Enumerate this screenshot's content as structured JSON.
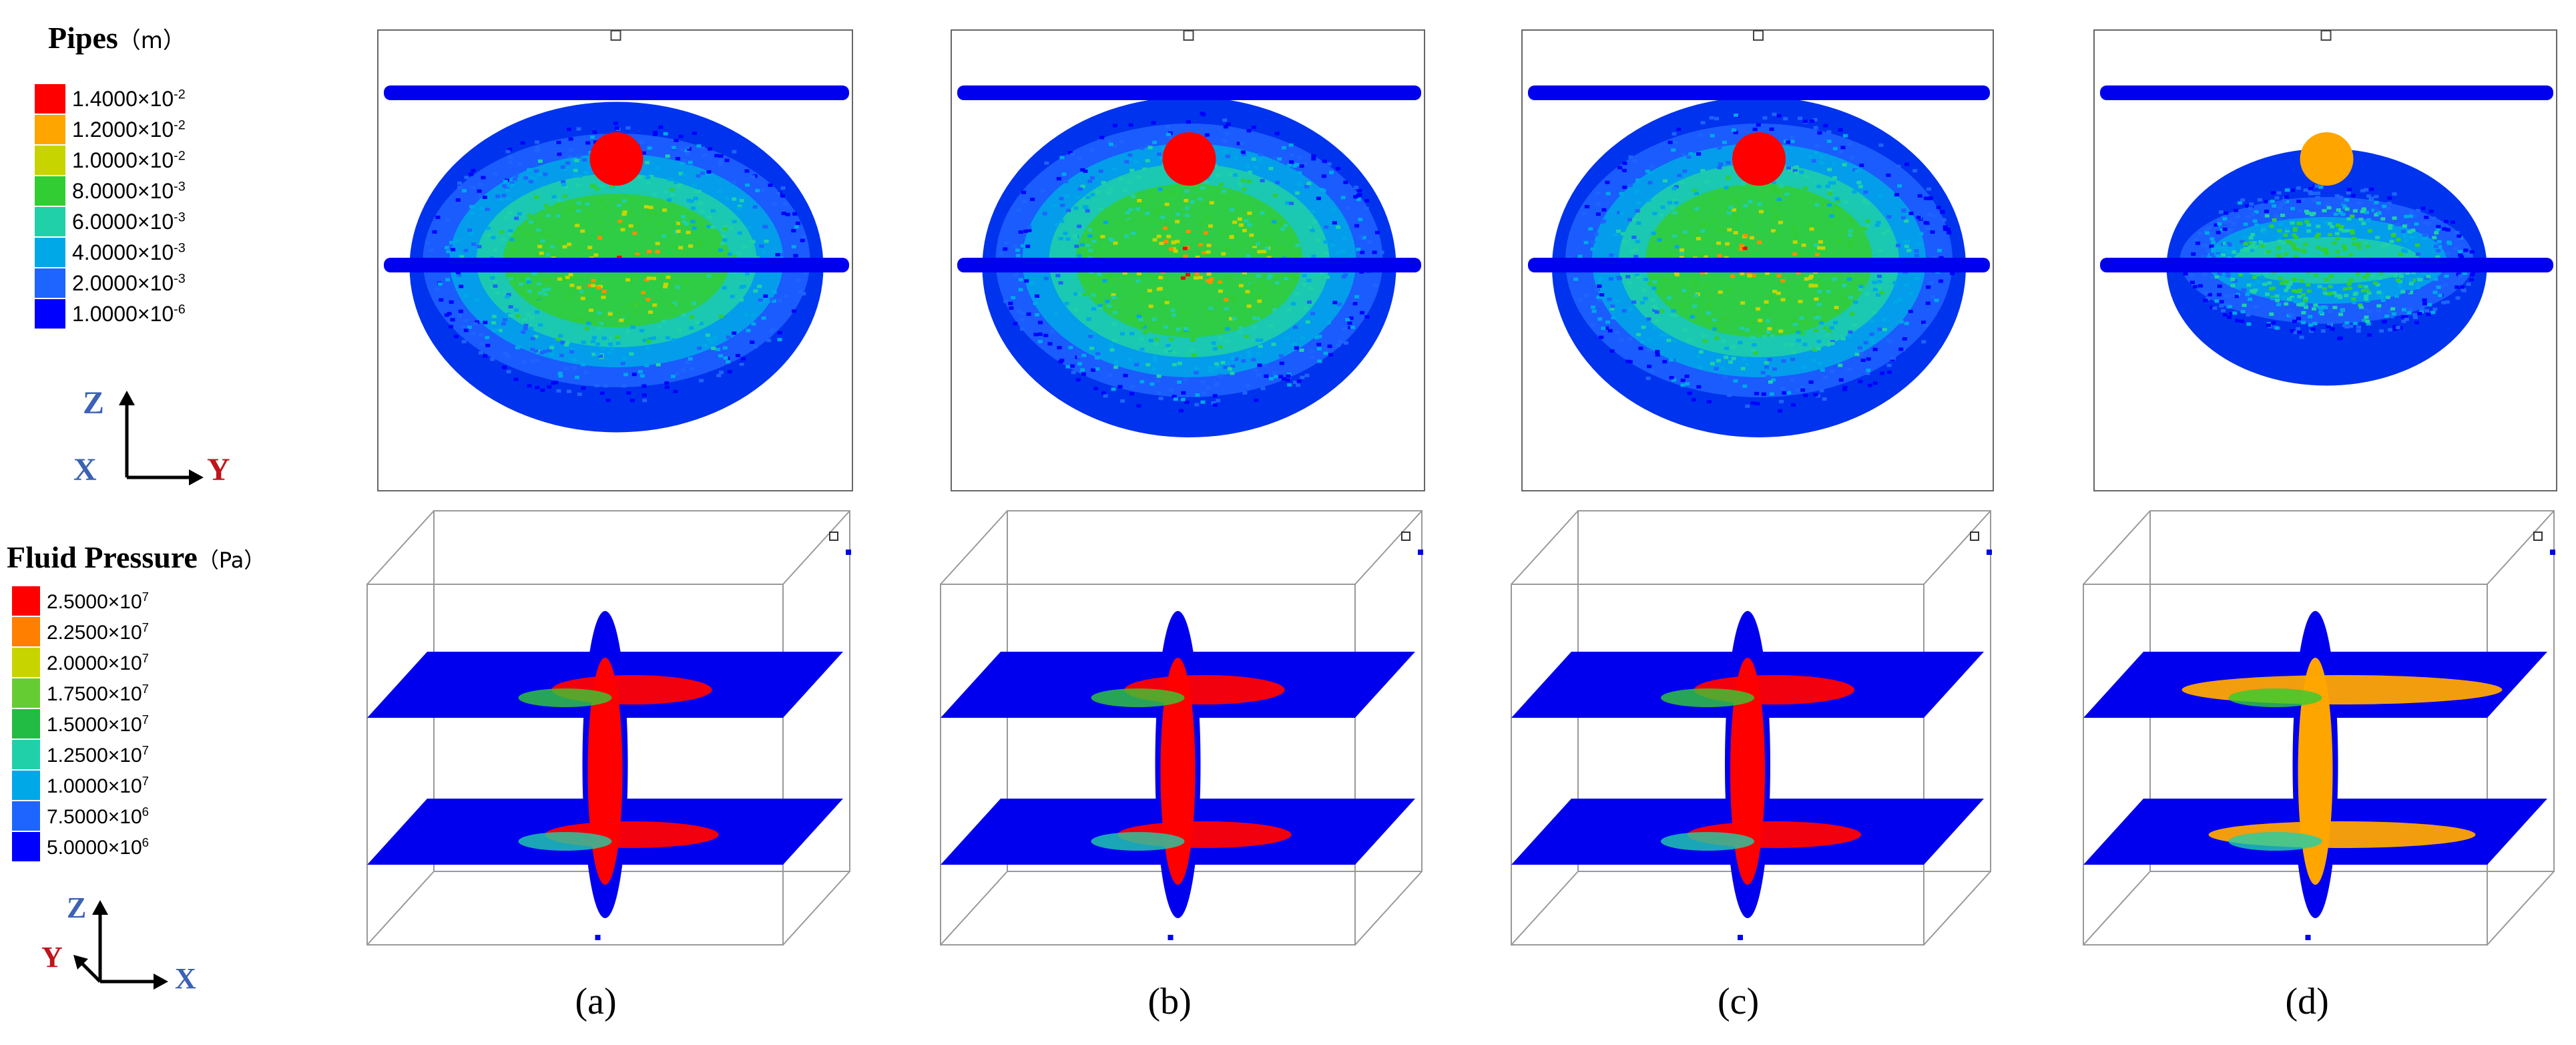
{
  "legends": {
    "pipes": {
      "title": "Pipes",
      "unit": "（m）",
      "entries": [
        {
          "label": "1.4000×10",
          "exp": "-2",
          "color": "#ff0000"
        },
        {
          "label": "1.2000×10",
          "exp": "-2",
          "color": "#ffa500"
        },
        {
          "label": "1.0000×10",
          "exp": "-2",
          "color": "#c8d400"
        },
        {
          "label": "8.0000×10",
          "exp": "-3",
          "color": "#32cd32"
        },
        {
          "label": "6.0000×10",
          "exp": "-3",
          "color": "#20d0a8"
        },
        {
          "label": "4.0000×10",
          "exp": "-3",
          "color": "#00a8e8"
        },
        {
          "label": "2.0000×10",
          "exp": "-3",
          "color": "#1e64ff"
        },
        {
          "label": "1.0000×10",
          "exp": "-6",
          "color": "#0000ff"
        }
      ]
    },
    "fluid": {
      "title": "Fluid Pressure",
      "unit": "（Pa）",
      "entries": [
        {
          "label": "2.5000×10",
          "exp": "7",
          "color": "#ff0000"
        },
        {
          "label": "2.2500×10",
          "exp": "7",
          "color": "#ff7f00"
        },
        {
          "label": "2.0000×10",
          "exp": "7",
          "color": "#c8d400"
        },
        {
          "label": "1.7500×10",
          "exp": "7",
          "color": "#66cc33"
        },
        {
          "label": "1.5000×10",
          "exp": "7",
          "color": "#22bb44"
        },
        {
          "label": "1.2500×10",
          "exp": "7",
          "color": "#20d0a8"
        },
        {
          "label": "1.0000×10",
          "exp": "7",
          "color": "#00a8e8"
        },
        {
          "label": "7.5000×10",
          "exp": "6",
          "color": "#1e64ff"
        },
        {
          "label": "5.0000×10",
          "exp": "6",
          "color": "#0000ff"
        }
      ]
    }
  },
  "axes_top": {
    "vertical": "Z",
    "left": "X",
    "right": "Y"
  },
  "axes_bottom": {
    "vertical": "Z",
    "left": "Y",
    "right": "X"
  },
  "panels": [
    {
      "label": "(a)"
    },
    {
      "label": "(b)"
    },
    {
      "label": "(c)"
    },
    {
      "label": "(d)"
    }
  ],
  "colors": {
    "axis_blue": "#3b62b5",
    "axis_red": "#c0141b",
    "particle_blue": "#0000ff"
  }
}
